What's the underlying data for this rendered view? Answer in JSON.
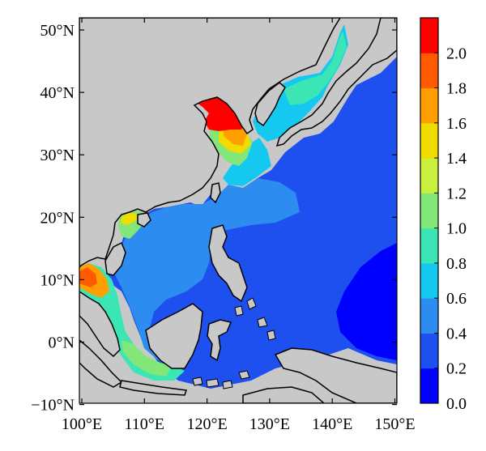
{
  "map": {
    "y_ticks": [
      "50°N",
      "40°N",
      "30°N",
      "20°N",
      "10°N",
      "0°N",
      "−10°N"
    ],
    "x_ticks": [
      "100°E",
      "110°E",
      "120°E",
      "130°E",
      "140°E",
      "150°E"
    ],
    "land_color": "#c8c8c8",
    "coastline_color": "#000000"
  },
  "colorbar": {
    "tick_labels": [
      "2.0",
      "1.8",
      "1.6",
      "1.4",
      "1.2",
      "1.0",
      "0.8",
      "0.6",
      "0.4",
      "0.2",
      "0.0"
    ],
    "range": [
      0.0,
      2.2
    ],
    "colors": [
      "#0000ff",
      "#1e50f0",
      "#2d8cf0",
      "#14c8f0",
      "#3ce6b4",
      "#82e678",
      "#c8f03c",
      "#f0dc00",
      "#ffa000",
      "#ff5a00",
      "#ff0000"
    ]
  }
}
